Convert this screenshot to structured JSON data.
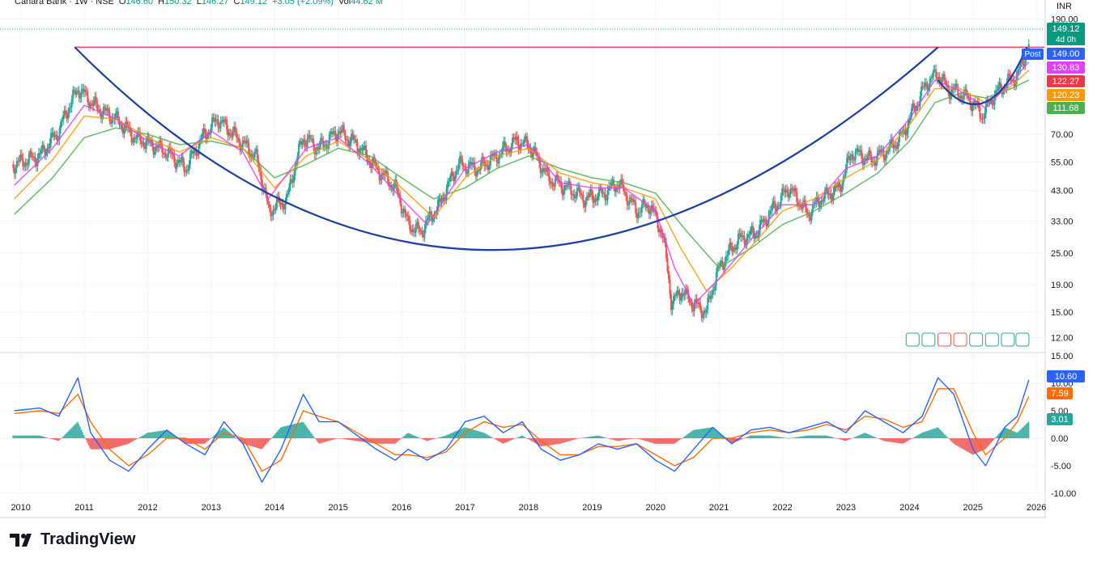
{
  "header": {
    "symbol": "Canara Bank · 1W · NSE",
    "open_label": "O",
    "open": "146.60",
    "high_label": "H",
    "high": "150.32",
    "low_label": "L",
    "low": "146.27",
    "close_label": "C",
    "close": "149.12",
    "change": "+3.05 (+2.09%)",
    "vol_label": "Vol",
    "vol": "44.62 M"
  },
  "currency": "INR",
  "badges": {
    "last_price": "149.12",
    "time_left": "4d 0h",
    "post_label": "Post",
    "post_price": "149.00",
    "ma1": "130.83",
    "ma2": "122.27",
    "ma3": "120.23",
    "ma4": "111.68",
    "macd": "10.60",
    "signal": "7.59",
    "hist": "3.01"
  },
  "colors": {
    "up": "#26a69a",
    "down": "#ef5350",
    "ma_fast": "#e040fb",
    "ma_mid": "#ff9800",
    "ma_slow": "#4caf50",
    "resistance": "#e0456a",
    "cup": "#1f3fa3",
    "macd": "#2962ff",
    "signal": "#ff6d00",
    "last_price_bg": "#089981",
    "post_bg": "#2962ff",
    "ma1_bg": "#e040fb",
    "ma2_bg": "#f23645",
    "ma3_bg": "#ff9800",
    "ma4_bg": "#4caf50"
  },
  "logo_text": "TradingView",
  "chart_data": [
    {
      "type": "line",
      "title": "Canara Bank · 1W · NSE",
      "scale": "log",
      "y_ticks": [
        "190.00",
        "70.00",
        "55.00",
        "43.00",
        "33.00",
        "25.00",
        "19.00",
        "15.00",
        "12.00"
      ],
      "y_tick_values": [
        190,
        70,
        55,
        43,
        33,
        25,
        19,
        15,
        12
      ],
      "x_ticks": [
        "2010",
        "2011",
        "2012",
        "2013",
        "2014",
        "2015",
        "2016",
        "2017",
        "2018",
        "2019",
        "2020",
        "2021",
        "2022",
        "2023",
        "2024",
        "2025",
        "2026"
      ],
      "x_tick_values": [
        2010,
        2011,
        2012,
        2013,
        2014,
        2015,
        2016,
        2017,
        2018,
        2019,
        2020,
        2021,
        2022,
        2023,
        2024,
        2025,
        2026
      ],
      "xlim": [
        2009.8,
        2026.1
      ],
      "ylim": [
        11,
        195
      ],
      "series": [
        {
          "key": "close",
          "x": [
            2009.9,
            2010.3,
            2010.6,
            2010.9,
            2011.2,
            2011.5,
            2011.8,
            2012.0,
            2012.3,
            2012.6,
            2012.9,
            2013.1,
            2013.4,
            2013.7,
            2013.9,
            2014.2,
            2014.45,
            2014.7,
            2015.0,
            2015.3,
            2015.6,
            2015.9,
            2016.1,
            2016.3,
            2016.6,
            2016.9,
            2017.2,
            2017.5,
            2017.8,
            2018.0,
            2018.3,
            2018.6,
            2018.9,
            2019.2,
            2019.4,
            2019.7,
            2019.9,
            2020.1,
            2020.25,
            2020.4,
            2020.6,
            2020.8,
            2021.0,
            2021.3,
            2021.6,
            2021.9,
            2022.1,
            2022.4,
            2022.6,
            2022.9,
            2023.1,
            2023.4,
            2023.7,
            2023.9,
            2024.1,
            2024.3,
            2024.45,
            2024.6,
            2024.8,
            2025.0,
            2025.15,
            2025.3,
            2025.5,
            2025.7,
            2025.88
          ],
          "y": [
            54,
            58,
            72,
            104,
            88,
            80,
            68,
            65,
            60,
            52,
            70,
            80,
            68,
            58,
            36,
            40,
            68,
            62,
            72,
            64,
            52,
            44,
            32,
            30,
            38,
            54,
            52,
            58,
            66,
            64,
            48,
            44,
            40,
            42,
            46,
            36,
            38,
            30,
            16,
            18,
            16,
            15,
            22,
            28,
            30,
            38,
            44,
            35,
            40,
            44,
            60,
            56,
            62,
            70,
            90,
            112,
            118,
            104,
            100,
            92,
            82,
            96,
            108,
            116,
            149
          ]
        },
        {
          "key": "ma_fast",
          "x": [
            2009.9,
            2010.5,
            2011.0,
            2011.5,
            2012.0,
            2012.5,
            2013.0,
            2013.5,
            2013.9,
            2014.5,
            2015.0,
            2015.5,
            2016.0,
            2016.4,
            2017.0,
            2017.5,
            2018.0,
            2018.5,
            2019.0,
            2019.5,
            2020.0,
            2020.3,
            2020.6,
            2021.0,
            2021.5,
            2022.0,
            2022.5,
            2023.0,
            2023.5,
            2024.0,
            2024.4,
            2024.8,
            2025.2,
            2025.6,
            2025.88
          ],
          "y": [
            45,
            62,
            90,
            80,
            66,
            58,
            72,
            60,
            40,
            62,
            68,
            54,
            40,
            32,
            52,
            60,
            64,
            46,
            44,
            44,
            36,
            22,
            16,
            20,
            28,
            38,
            38,
            52,
            58,
            80,
            112,
            102,
            88,
            110,
            131
          ]
        },
        {
          "key": "ma_mid",
          "x": [
            2009.9,
            2010.5,
            2011.0,
            2011.5,
            2012.0,
            2012.5,
            2013.0,
            2013.5,
            2014.0,
            2014.5,
            2015.0,
            2015.5,
            2016.0,
            2016.5,
            2017.0,
            2017.5,
            2018.0,
            2018.5,
            2019.0,
            2019.5,
            2020.0,
            2020.4,
            2020.8,
            2021.2,
            2021.6,
            2022.0,
            2022.5,
            2023.0,
            2023.5,
            2024.0,
            2024.4,
            2024.8,
            2025.2,
            2025.6,
            2025.88
          ],
          "y": [
            40,
            56,
            82,
            80,
            68,
            60,
            68,
            62,
            44,
            58,
            66,
            56,
            44,
            34,
            48,
            58,
            62,
            50,
            46,
            44,
            40,
            26,
            18,
            22,
            28,
            36,
            40,
            48,
            56,
            76,
            104,
            104,
            92,
            106,
            122
          ]
        },
        {
          "key": "ma_slow",
          "x": [
            2009.9,
            2010.5,
            2011.0,
            2011.5,
            2012.0,
            2012.5,
            2013.0,
            2013.5,
            2014.0,
            2014.5,
            2015.0,
            2015.5,
            2016.0,
            2016.5,
            2017.0,
            2017.5,
            2018.0,
            2018.5,
            2019.0,
            2019.5,
            2020.0,
            2020.5,
            2021.0,
            2021.5,
            2022.0,
            2022.5,
            2023.0,
            2023.5,
            2024.0,
            2024.4,
            2024.8,
            2025.2,
            2025.6,
            2025.88
          ],
          "y": [
            35,
            48,
            68,
            74,
            70,
            64,
            66,
            62,
            48,
            54,
            62,
            58,
            48,
            40,
            44,
            52,
            58,
            52,
            48,
            46,
            42,
            30,
            22,
            26,
            32,
            36,
            42,
            50,
            66,
            92,
            100,
            96,
            104,
            112
          ]
        }
      ],
      "resistance_level": 149.0
    },
    {
      "type": "line",
      "title": "MACD",
      "y_ticks": [
        "15.00",
        "10.00",
        "5.00",
        "0.00",
        "-5.00",
        "-10.00"
      ],
      "y_tick_values": [
        15,
        10,
        5,
        0,
        -5,
        -10
      ],
      "ylim": [
        -10,
        15
      ],
      "series": [
        {
          "key": "macd",
          "x": [
            2009.9,
            2010.3,
            2010.6,
            2010.9,
            2011.1,
            2011.4,
            2011.7,
            2012.0,
            2012.3,
            2012.6,
            2012.9,
            2013.2,
            2013.5,
            2013.8,
            2014.1,
            2014.45,
            2014.7,
            2015.0,
            2015.3,
            2015.6,
            2015.9,
            2016.1,
            2016.4,
            2016.7,
            2017.0,
            2017.3,
            2017.6,
            2017.9,
            2018.2,
            2018.5,
            2018.8,
            2019.1,
            2019.4,
            2019.7,
            2020.0,
            2020.3,
            2020.6,
            2020.9,
            2021.2,
            2021.5,
            2021.8,
            2022.1,
            2022.4,
            2022.7,
            2023.0,
            2023.3,
            2023.6,
            2023.9,
            2024.2,
            2024.45,
            2024.7,
            2025.0,
            2025.2,
            2025.5,
            2025.7,
            2025.88
          ],
          "y": [
            5,
            5.5,
            4,
            11,
            1,
            -4,
            -6,
            -2,
            1.5,
            -1,
            -3,
            3,
            -1,
            -8,
            -2,
            8,
            3,
            3,
            0.5,
            -2,
            -4,
            -2,
            -4,
            -2,
            3,
            4,
            1,
            3,
            -2,
            -4,
            -3,
            -1,
            -2,
            -1,
            -4,
            -6,
            -2,
            2,
            -1,
            1.5,
            2,
            1,
            2,
            3,
            1,
            5,
            3,
            1,
            4,
            11,
            8,
            -2,
            -5,
            2,
            4,
            10.6
          ]
        },
        {
          "key": "signal",
          "x": [
            2009.9,
            2010.3,
            2010.6,
            2010.9,
            2011.1,
            2011.4,
            2011.7,
            2012.0,
            2012.3,
            2012.6,
            2012.9,
            2013.2,
            2013.5,
            2013.8,
            2014.1,
            2014.45,
            2014.7,
            2015.0,
            2015.3,
            2015.6,
            2015.9,
            2016.1,
            2016.4,
            2016.7,
            2017.0,
            2017.3,
            2017.6,
            2017.9,
            2018.2,
            2018.5,
            2018.8,
            2019.1,
            2019.4,
            2019.7,
            2020.0,
            2020.3,
            2020.6,
            2020.9,
            2021.2,
            2021.5,
            2021.8,
            2022.1,
            2022.4,
            2022.7,
            2023.0,
            2023.3,
            2023.6,
            2023.9,
            2024.2,
            2024.45,
            2024.7,
            2025.0,
            2025.2,
            2025.5,
            2025.7,
            2025.88
          ],
          "y": [
            4.5,
            5,
            4.5,
            8,
            3,
            -2,
            -5,
            -3,
            0,
            0,
            -2,
            1,
            0,
            -6,
            -4,
            5,
            4,
            3,
            1,
            -1,
            -3,
            -3,
            -3.5,
            -2.5,
            1,
            3,
            2,
            2.5,
            -0.5,
            -3,
            -3,
            -1.5,
            -1.5,
            -1,
            -3,
            -5,
            -3.5,
            0,
            0,
            1,
            1.5,
            1,
            1.5,
            2.5,
            1.5,
            4,
            3.5,
            2,
            3,
            9,
            9,
            1,
            -3,
            0,
            3,
            7.59
          ]
        }
      ],
      "hist_last": 3.01
    }
  ]
}
